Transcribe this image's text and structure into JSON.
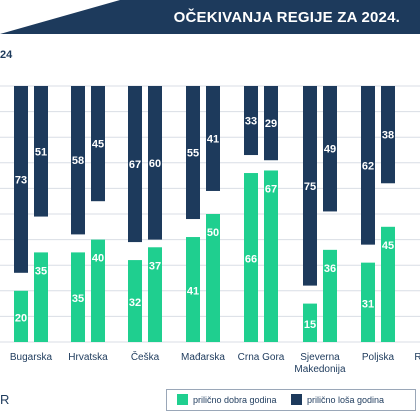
{
  "header": {
    "title": "OČEKIVANJA REGIJE ZA 2024."
  },
  "subtitle_fragment": "24",
  "footer_fragment": "R",
  "colors": {
    "good": "#1fcf8f",
    "bad": "#1d3a5c",
    "header_bg": "#1d3a5c",
    "grid": "#d9dee5"
  },
  "legend": {
    "good_label": "prilično dobra godina",
    "bad_label": "prilično loša godina"
  },
  "chart_data": {
    "type": "bar",
    "stacked": false,
    "categories": [
      "Bugarska",
      "Hrvatska",
      "Češka",
      "Mađarska",
      "Crna Gora",
      "Sjeverna Makedonija",
      "Poljska",
      "R"
    ],
    "category_lines": [
      [
        "Bugarska"
      ],
      [
        "Hrvatska"
      ],
      [
        "Češka"
      ],
      [
        "Mađarska"
      ],
      [
        "Crna Gora"
      ],
      [
        "Sjeverna",
        "Makedonija"
      ],
      [
        "Poljska"
      ],
      [
        "R"
      ]
    ],
    "series": [
      {
        "name": "prilično dobra godina",
        "values": [
          20,
          35,
          32,
          41,
          66,
          15,
          31,
          null
        ]
      },
      {
        "name": "prilično loša godina",
        "values": [
          73,
          58,
          67,
          55,
          33,
          75,
          62,
          null
        ]
      }
    ],
    "series_top_labels": {
      "good_second": [
        35,
        40,
        37,
        50,
        67,
        36,
        45
      ],
      "bad_second": [
        51,
        45,
        60,
        41,
        29,
        49,
        38
      ]
    },
    "ylim": [
      0,
      100
    ],
    "grid": true,
    "legend_position": "bottom-right"
  }
}
